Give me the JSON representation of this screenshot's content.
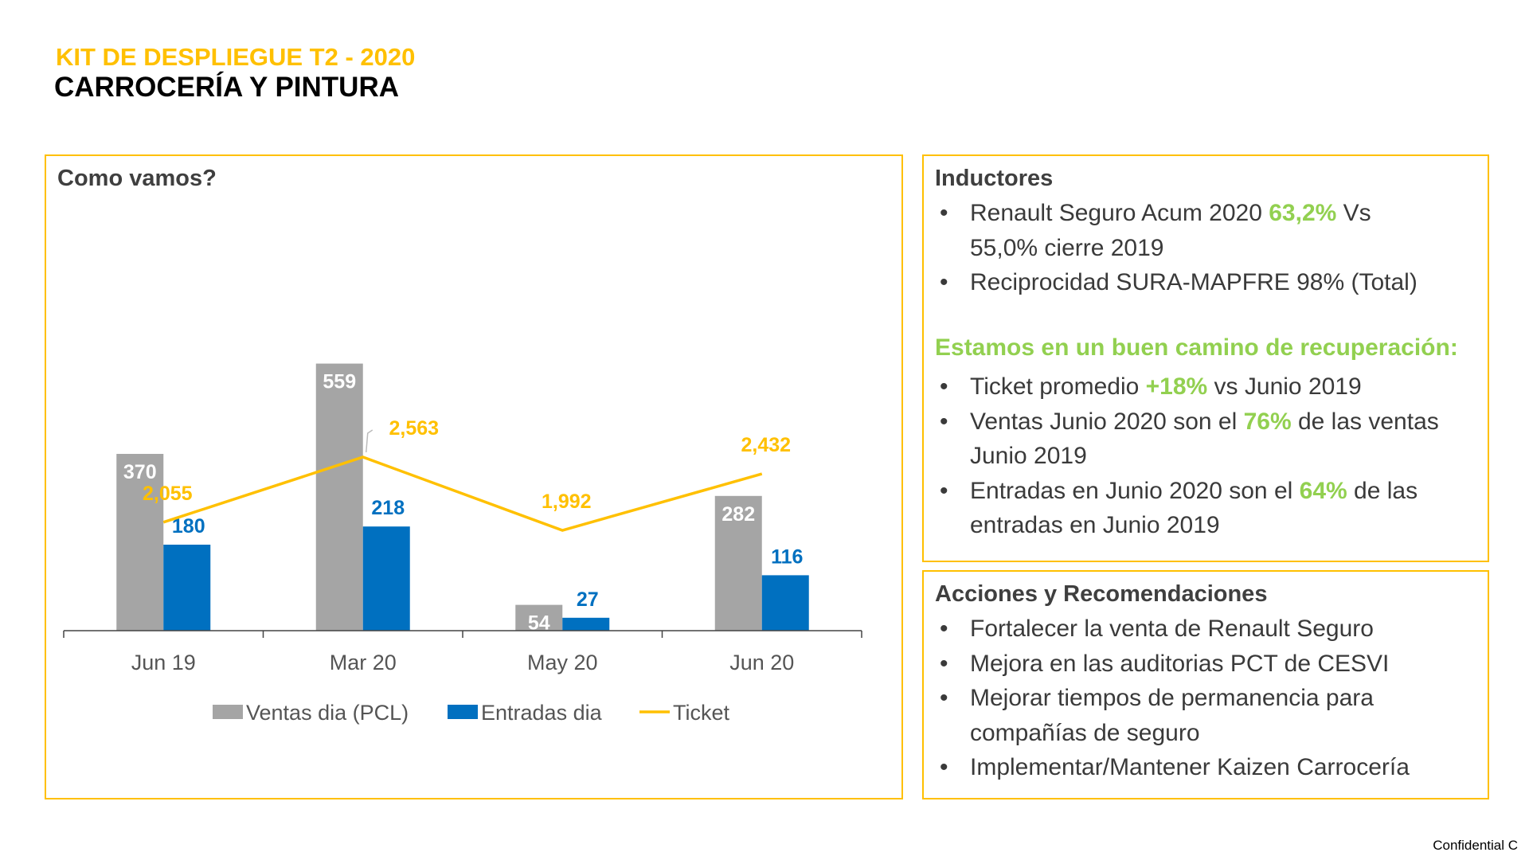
{
  "header": {
    "kit_title": "KIT DE DESPLIEGUE T2 - 2020",
    "title": "CARROCERÍA Y PINTURA"
  },
  "chart_panel": {
    "title": "Como vamos?"
  },
  "chart_data": {
    "type": "bar",
    "categories": [
      "Jun 19",
      "Mar 20",
      "May 20",
      "Jun 20"
    ],
    "series": [
      {
        "name": "Ventas dia (PCL)",
        "type": "bar",
        "color": "#A5A5A5",
        "values": [
          370,
          559,
          54,
          282
        ]
      },
      {
        "name": "Entradas dia",
        "type": "bar",
        "color": "#0070C0",
        "values": [
          180,
          218,
          27,
          116
        ]
      },
      {
        "name": "Ticket",
        "type": "line",
        "color": "#FFC000",
        "values": [
          2055,
          2563,
          1992,
          2432
        ],
        "labels": [
          "2,055",
          "2,563",
          "1,992",
          "2,432"
        ]
      }
    ],
    "legend_position": "bottom",
    "grid": false
  },
  "inductores": {
    "title": "Inductores",
    "items": [
      {
        "pre": "Renault Seguro Acum 2020 ",
        "hl": "63,2%",
        "post": " Vs",
        "cont": "55,0% cierre 2019"
      },
      {
        "pre": "Reciprocidad SURA-MAPFRE 98% (Total)",
        "hl": "",
        "post": "",
        "cont": ""
      }
    ],
    "recovery_heading": "Estamos en un buen camino de recuperación:",
    "recovery_items": [
      {
        "pre": "Ticket promedio ",
        "hl": "+18%",
        "post": " vs Junio 2019",
        "cont": ""
      },
      {
        "pre": "Ventas Junio 2020 son el ",
        "hl": "76%",
        "post": " de las ventas",
        "cont": "Junio 2019"
      },
      {
        "pre": "Entradas en Junio 2020 son el ",
        "hl": "64%",
        "post": " de las",
        "cont": "entradas en Junio 2019"
      }
    ]
  },
  "acciones": {
    "title": "Acciones y Recomendaciones",
    "items": [
      {
        "pre": "Fortalecer la venta de Renault Seguro",
        "hl": "",
        "post": "",
        "cont": ""
      },
      {
        "pre": "Mejora en las auditorias PCT de CESVI",
        "hl": "",
        "post": "",
        "cont": ""
      },
      {
        "pre": "Mejorar tiempos de permanencia para",
        "hl": "",
        "post": "",
        "cont": "compañías de seguro"
      },
      {
        "pre": "Implementar/Mantener Kaizen Carrocería",
        "hl": "",
        "post": "",
        "cont": ""
      }
    ]
  },
  "footer": {
    "confidential": "Confidential C"
  }
}
